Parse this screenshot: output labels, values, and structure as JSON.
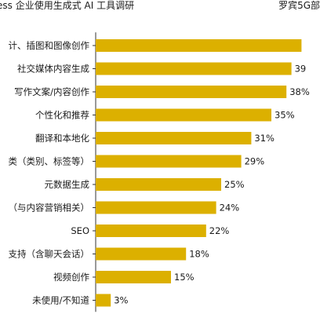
{
  "header": {
    "title": "ess 企业使用生成式 AI 工具调研",
    "source": "罗宾5G部"
  },
  "colors": {
    "bar": "#dcb000",
    "axis": "#333333"
  },
  "chart_data": {
    "type": "bar",
    "orientation": "horizontal",
    "title": "ess 企业使用生成式 AI 工具调研",
    "categories": [
      "计、插图和图像创作",
      "社交媒体内容生成",
      "写作文案/内容创作",
      "个性化和推荐",
      "翻译和本地化",
      "类（类别、标签等）",
      "元数据生成",
      "（与内容营销相关）",
      "SEO",
      "支持（含聊天会话）",
      "视频创作",
      "未使用/不知道"
    ],
    "values": [
      41,
      39,
      38,
      35,
      31,
      29,
      25,
      24,
      22,
      18,
      15,
      3
    ],
    "value_labels": [
      "",
      "39",
      "38%",
      "35%",
      "31%",
      "29%",
      "25%",
      "24%",
      "22%",
      "18%",
      "15%",
      "3%"
    ],
    "xlim": [
      0,
      100
    ],
    "grid": false,
    "legend": "none"
  }
}
